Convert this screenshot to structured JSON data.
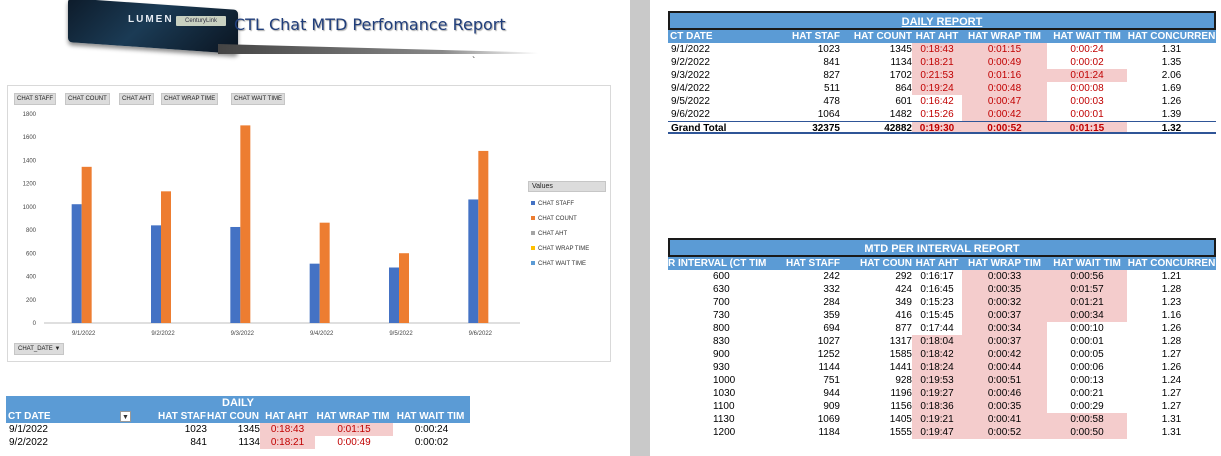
{
  "banner": {
    "brand": "LUMEN",
    "tag": "CenturyLink",
    "title": "CTL Chat MTD Perfomance Report",
    "tick": "`"
  },
  "chart_buttons": [
    "CHAT STAFF",
    "CHAT COUNT",
    "CHAT AHT",
    "CHAT WRAP TIME",
    "CHAT WAIT TIME"
  ],
  "chart_legend": {
    "title": "Values",
    "items": [
      "CHAT STAFF",
      "CHAT COUNT",
      "CHAT AHT",
      "CHAT WRAP TIME",
      "CHAT WAIT TIME"
    ]
  },
  "chart_filter": "CHAT_DATE",
  "colors": {
    "staff": "#4472c4",
    "count": "#ed7d31",
    "aht": "#a5a5a5",
    "wrap": "#ffc000",
    "wait": "#5b9bd5",
    "header": "#5b9bd5",
    "highlight": "#f4cccc"
  },
  "chart_data": {
    "type": "bar",
    "categories": [
      "9/1/2022",
      "9/2/2022",
      "9/3/2022",
      "9/4/2022",
      "9/5/2022",
      "9/6/2022"
    ],
    "series": [
      {
        "name": "CHAT STAFF",
        "values": [
          1023,
          841,
          827,
          511,
          478,
          1064
        ]
      },
      {
        "name": "CHAT COUNT",
        "values": [
          1345,
          1134,
          1702,
          864,
          601,
          1482
        ]
      },
      {
        "name": "CHAT AHT",
        "values": [
          0,
          0,
          0,
          0,
          0,
          0
        ]
      },
      {
        "name": "CHAT WRAP TIME",
        "values": [
          0,
          0,
          0,
          0,
          0,
          0
        ]
      },
      {
        "name": "CHAT WAIT TIME",
        "values": [
          0,
          0,
          0,
          0,
          0,
          0
        ]
      }
    ],
    "ylim": [
      0,
      1800
    ],
    "yticks": [
      "0",
      "200",
      "400",
      "600",
      "800",
      "1000",
      "1200",
      "1400",
      "1600",
      "1800"
    ],
    "legend": "right",
    "grid": false
  },
  "bottom_daily": {
    "title": "DAILY",
    "headers": [
      "CT DATE",
      "HAT STAF",
      "HAT COUN",
      "HAT AHT",
      "HAT WRAP TIM",
      "HAT WAIT TIM"
    ],
    "rows": [
      [
        "9/1/2022",
        "1023",
        "1345",
        "0:18:43",
        "0:01:15",
        "0:00:24"
      ],
      [
        "9/2/2022",
        "841",
        "1134",
        "0:18:21",
        "0:00:49",
        "0:00:02"
      ]
    ]
  },
  "daily_report": {
    "title": "DAILY REPORT",
    "headers": [
      "CT DATE",
      "HAT STAF",
      "HAT COUNT",
      "HAT AHT",
      "HAT WRAP TIM",
      "HAT WAIT TIM",
      "HAT CONCURREN"
    ],
    "rows": [
      [
        "9/1/2022",
        "1023",
        "1345",
        "0:18:43",
        "0:01:15",
        "0:00:24",
        "1.31"
      ],
      [
        "9/2/2022",
        "841",
        "1134",
        "0:18:21",
        "0:00:49",
        "0:00:02",
        "1.35"
      ],
      [
        "9/3/2022",
        "827",
        "1702",
        "0:21:53",
        "0:01:16",
        "0:01:24",
        "2.06"
      ],
      [
        "9/4/2022",
        "511",
        "864",
        "0:19:24",
        "0:00:48",
        "0:00:08",
        "1.69"
      ],
      [
        "9/5/2022",
        "478",
        "601",
        "0:16:42",
        "0:00:47",
        "0:00:03",
        "1.26"
      ],
      [
        "9/6/2022",
        "1064",
        "1482",
        "0:15:26",
        "0:00:42",
        "0:00:01",
        "1.39"
      ]
    ],
    "pink": [
      [
        false,
        false,
        false,
        true,
        true,
        false,
        false
      ],
      [
        false,
        false,
        false,
        true,
        true,
        false,
        false
      ],
      [
        false,
        false,
        false,
        true,
        true,
        true,
        false
      ],
      [
        false,
        false,
        false,
        true,
        true,
        false,
        false
      ],
      [
        false,
        false,
        false,
        false,
        true,
        false,
        false
      ],
      [
        false,
        false,
        false,
        false,
        true,
        false,
        false
      ]
    ],
    "total": [
      "Grand Total",
      "32375",
      "42882",
      "0:19:30",
      "0:00:52",
      "0:01:15",
      "1.32"
    ]
  },
  "interval_report": {
    "title": "MTD PER INTERVAL REPORT",
    "headers": [
      "R INTERVAL (CT TIM",
      "HAT STAFF",
      "HAT COUN",
      "HAT AHT",
      "HAT WRAP TIM",
      "HAT WAIT TIM",
      "HAT CONCURREN"
    ],
    "rows": [
      [
        "600",
        "242",
        "292",
        "0:16:17",
        "0:00:33",
        "0:00:56",
        "1.21"
      ],
      [
        "630",
        "332",
        "424",
        "0:16:45",
        "0:00:35",
        "0:01:57",
        "1.28"
      ],
      [
        "700",
        "284",
        "349",
        "0:15:23",
        "0:00:32",
        "0:01:21",
        "1.23"
      ],
      [
        "730",
        "359",
        "416",
        "0:15:45",
        "0:00:37",
        "0:00:34",
        "1.16"
      ],
      [
        "800",
        "694",
        "877",
        "0:17:44",
        "0:00:34",
        "0:00:10",
        "1.26"
      ],
      [
        "830",
        "1027",
        "1317",
        "0:18:04",
        "0:00:37",
        "0:00:01",
        "1.28"
      ],
      [
        "900",
        "1252",
        "1585",
        "0:18:42",
        "0:00:42",
        "0:00:05",
        "1.27"
      ],
      [
        "930",
        "1144",
        "1441",
        "0:18:24",
        "0:00:44",
        "0:00:06",
        "1.26"
      ],
      [
        "1000",
        "751",
        "928",
        "0:19:53",
        "0:00:51",
        "0:00:13",
        "1.24"
      ],
      [
        "1030",
        "944",
        "1196",
        "0:19:27",
        "0:00:46",
        "0:00:21",
        "1.27"
      ],
      [
        "1100",
        "909",
        "1156",
        "0:18:36",
        "0:00:35",
        "0:00:29",
        "1.27"
      ],
      [
        "1130",
        "1069",
        "1405",
        "0:19:21",
        "0:00:41",
        "0:00:58",
        "1.31"
      ],
      [
        "1200",
        "1184",
        "1555",
        "0:19:47",
        "0:00:52",
        "0:00:50",
        "1.31"
      ]
    ],
    "pink": [
      [
        false,
        false,
        false,
        false,
        true,
        true,
        false
      ],
      [
        false,
        false,
        false,
        false,
        true,
        true,
        false
      ],
      [
        false,
        false,
        false,
        false,
        true,
        true,
        false
      ],
      [
        false,
        false,
        false,
        false,
        true,
        true,
        false
      ],
      [
        false,
        false,
        false,
        false,
        true,
        false,
        false
      ],
      [
        false,
        false,
        false,
        true,
        true,
        false,
        false
      ],
      [
        false,
        false,
        false,
        true,
        true,
        false,
        false
      ],
      [
        false,
        false,
        false,
        true,
        true,
        false,
        false
      ],
      [
        false,
        false,
        false,
        true,
        true,
        false,
        false
      ],
      [
        false,
        false,
        false,
        true,
        true,
        false,
        false
      ],
      [
        false,
        false,
        false,
        true,
        true,
        false,
        false
      ],
      [
        false,
        false,
        false,
        true,
        true,
        true,
        false
      ],
      [
        false,
        false,
        false,
        true,
        true,
        true,
        false
      ]
    ]
  }
}
